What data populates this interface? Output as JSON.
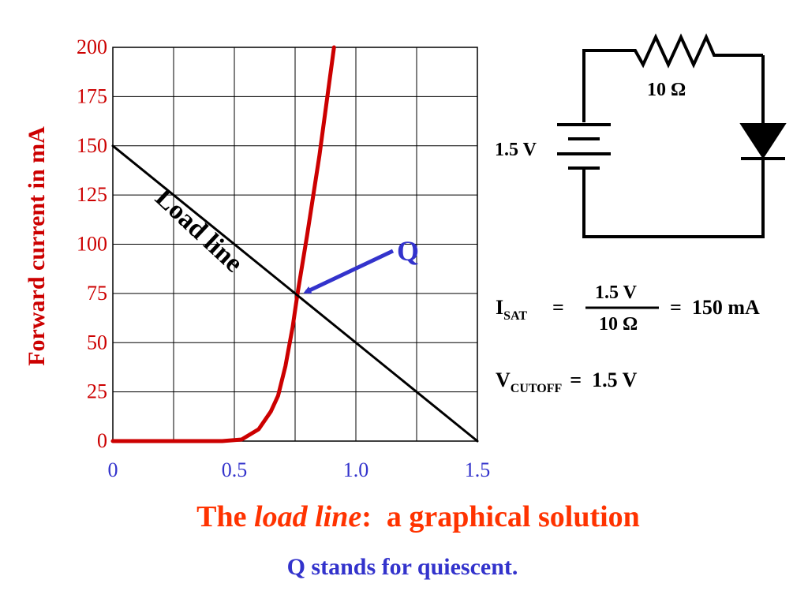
{
  "chart_data": {
    "type": "line",
    "xlabel": "",
    "ylabel": "Forward current in mA",
    "xlim": [
      0,
      1.5
    ],
    "ylim": [
      0,
      200
    ],
    "x_ticks": [
      "0",
      "0.5",
      "1.0",
      "1.5"
    ],
    "x_tick_values": [
      0,
      0.5,
      1.0,
      1.5
    ],
    "y_ticks": [
      "0",
      "25",
      "50",
      "75",
      "100",
      "125",
      "150",
      "175",
      "200"
    ],
    "y_tick_values": [
      0,
      25,
      50,
      75,
      100,
      125,
      150,
      175,
      200
    ],
    "grid": true,
    "series": [
      {
        "name": "",
        "color": "#cc0000",
        "points": [
          [
            0,
            0
          ],
          [
            0.3,
            0
          ],
          [
            0.45,
            0
          ],
          [
            0.53,
            0.8
          ],
          [
            0.6,
            6
          ],
          [
            0.65,
            15
          ],
          [
            0.68,
            23
          ],
          [
            0.71,
            38
          ],
          [
            0.74,
            58
          ],
          [
            0.76,
            75
          ],
          [
            0.8,
            105
          ],
          [
            0.85,
            145
          ],
          [
            0.91,
            200
          ]
        ]
      },
      {
        "name": "Load line",
        "color": "#000000",
        "points": [
          [
            0,
            150
          ],
          [
            1.5,
            0
          ]
        ]
      }
    ],
    "annotations": [
      {
        "text": "Load line",
        "color": "#000000"
      },
      {
        "text": "Q",
        "color": "#3333cc",
        "point": [
          0.76,
          75
        ]
      }
    ]
  },
  "circuit": {
    "resistor_label": "10 Ω",
    "battery_label": "1.5 V"
  },
  "equations": {
    "isat_main": "I",
    "isat_sub": "SAT",
    "eq_sign": "=",
    "numerator": "1.5 V",
    "denominator": "10 Ω",
    "result": "=  150 mA",
    "vcut_main": "V",
    "vcut_sub": "CUTOFF",
    "vcut_rhs": "=  1.5 V"
  },
  "caption": {
    "part1": "The ",
    "part2": "load line",
    "part3": ":  a graphical solution",
    "subtitle": "Q stands for quiescent."
  },
  "colors": {
    "axis_tick_x": "#3333cc",
    "axis_tick_y": "#cc0000",
    "caption_main": "#ff3300",
    "caption_sub": "#3333cc"
  }
}
